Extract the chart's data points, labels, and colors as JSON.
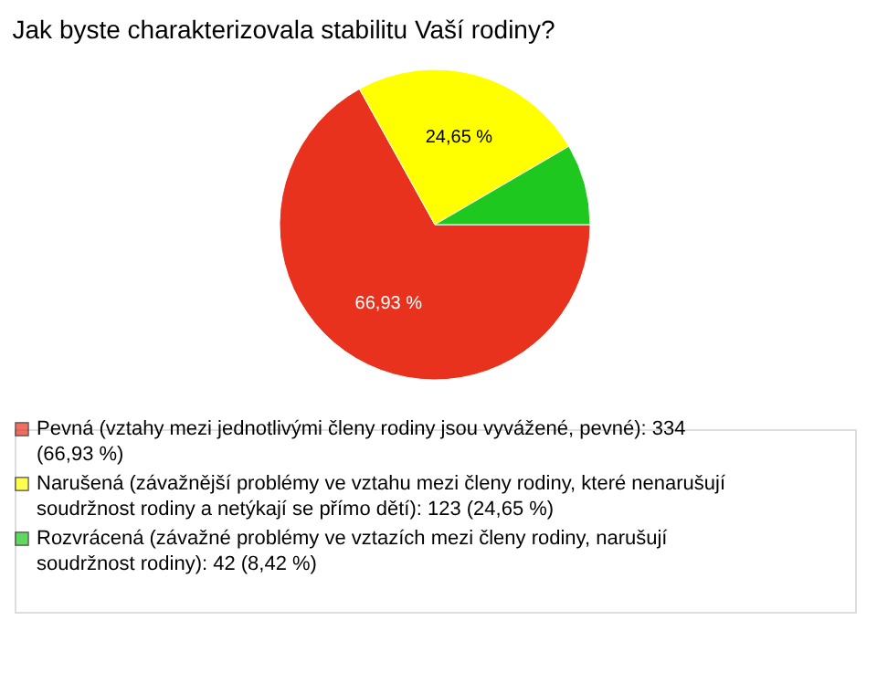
{
  "chart_data": {
    "type": "pie",
    "title": "Jak byste charakterizovala stabilitu Vaší rodiny?",
    "categories": [
      "Pevná (vztahy mezi jednotlivými členy rodiny jsou vyvážené, pevné): 334 (66,93 %)",
      "Narušená (závažnější problémy ve vztahu mezi členy rodiny, které nenarušují soudržnost rodiny a netýkají se přímo dětí): 123 (24,65 %)",
      "Rozvrácená (závažné problémy ve vztazích mezi členy rodiny, narušují soudržnost rodiny): 42 (8,42 %)"
    ],
    "values": [
      66.93,
      24.65,
      8.42
    ],
    "colors": [
      "#e8321e",
      "#ffff00",
      "#1ec81e"
    ],
    "value_labels": [
      "66,93 %",
      "24,65 %",
      null
    ],
    "legend": "bottom"
  }
}
